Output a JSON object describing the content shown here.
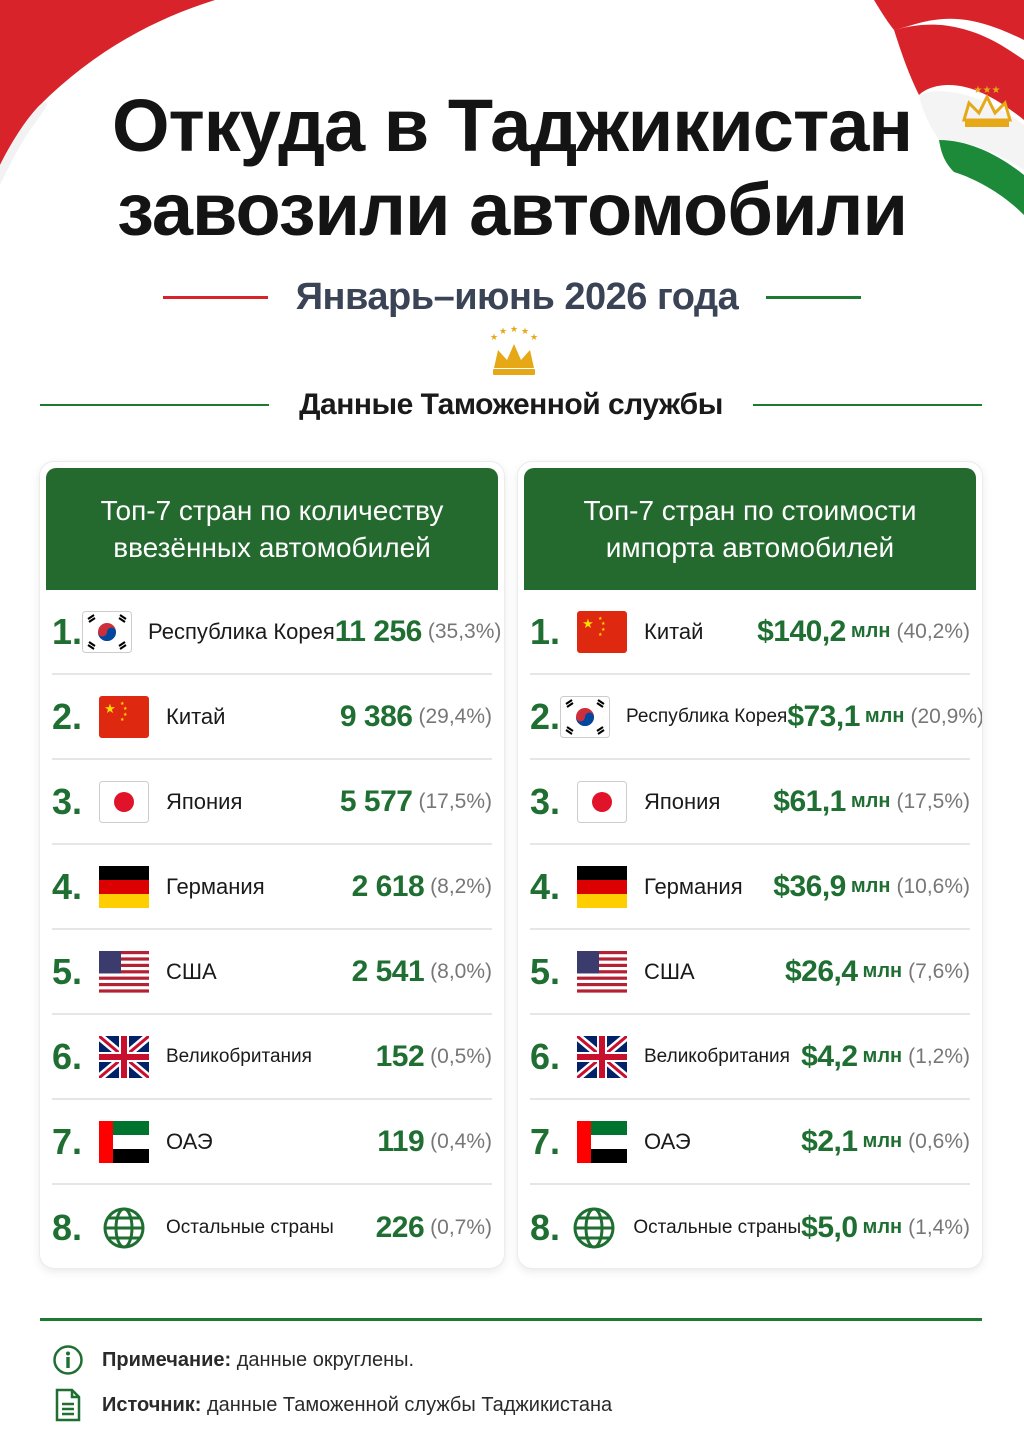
{
  "header": {
    "title_line1": "Откуда в Таджикистан",
    "title_line2": "завозили автомобили",
    "subtitle": "Январь–июнь 2026 года",
    "source_title": "Данные Таможенной службы"
  },
  "colors": {
    "flag_red": "#d8232a",
    "flag_green": "#1d7a33",
    "header_green": "#24692e",
    "value_green": "#1f6e32",
    "crown_gold": "#e6a817"
  },
  "chart_data": [
    {
      "type": "table",
      "title": "Топ-7 стран по количеству ввезённых автомобилей",
      "columns": [
        "rank",
        "country",
        "count",
        "share"
      ],
      "rows": [
        {
          "rank": "1.",
          "flag": "south-korea-flag",
          "country": "Республика Корея",
          "value": "11 256",
          "share": "(35,3%)"
        },
        {
          "rank": "2.",
          "flag": "china-flag",
          "country": "Китай",
          "value": "9 386",
          "share": "(29,4%)"
        },
        {
          "rank": "3.",
          "flag": "japan-flag",
          "country": "Япония",
          "value": "5 577",
          "share": "(17,5%)"
        },
        {
          "rank": "4.",
          "flag": "germany-flag",
          "country": "Германия",
          "value": "2 618",
          "share": "(8,2%)"
        },
        {
          "rank": "5.",
          "flag": "usa-flag",
          "country": "США",
          "value": "2 541",
          "share": "(8,0%)"
        },
        {
          "rank": "6.",
          "flag": "uk-flag",
          "country": "Великобритания",
          "value": "152",
          "share": "(0,5%)"
        },
        {
          "rank": "7.",
          "flag": "uae-flag",
          "country": "ОАЭ",
          "value": "119",
          "share": "(0,4%)"
        },
        {
          "rank": "8.",
          "flag": "globe-icon",
          "country": "Остальные страны",
          "value": "226",
          "share": "(0,7%)"
        }
      ]
    },
    {
      "type": "table",
      "title": "Топ-7 стран по стоимости импорта автомобилей",
      "columns": [
        "rank",
        "country",
        "value",
        "share"
      ],
      "unit": "млн",
      "rows": [
        {
          "rank": "1.",
          "flag": "china-flag",
          "country": "Китай",
          "value": "$140,2",
          "unit": "млн",
          "share": "(40,2%)"
        },
        {
          "rank": "2.",
          "flag": "south-korea-flag",
          "country": "Республика Корея",
          "value": "$73,1",
          "unit": "млн",
          "share": "(20,9%)"
        },
        {
          "rank": "3.",
          "flag": "japan-flag",
          "country": "Япония",
          "value": "$61,1",
          "unit": "млн",
          "share": "(17,5%)"
        },
        {
          "rank": "4.",
          "flag": "germany-flag",
          "country": "Германия",
          "value": "$36,9",
          "unit": "млн",
          "share": "(10,6%)"
        },
        {
          "rank": "5.",
          "flag": "usa-flag",
          "country": "США",
          "value": "$26,4",
          "unit": "млн",
          "share": "(7,6%)"
        },
        {
          "rank": "6.",
          "flag": "uk-flag",
          "country": "Великобритания",
          "value": "$4,2",
          "unit": "млн",
          "share": "(1,2%)"
        },
        {
          "rank": "7.",
          "flag": "uae-flag",
          "country": "ОАЭ",
          "value": "$2,1",
          "unit": "млн",
          "share": "(0,6%)"
        },
        {
          "rank": "8.",
          "flag": "globe-icon",
          "country": "Остальные страны",
          "value": "$5,0",
          "unit": "млн",
          "share": "(1,4%)"
        }
      ]
    }
  ],
  "footer": {
    "note_label": "Примечание:",
    "note_text": " данные округлены.",
    "source_label": "Источник:",
    "source_text": " данные Таможенной службы Таджикистана"
  }
}
